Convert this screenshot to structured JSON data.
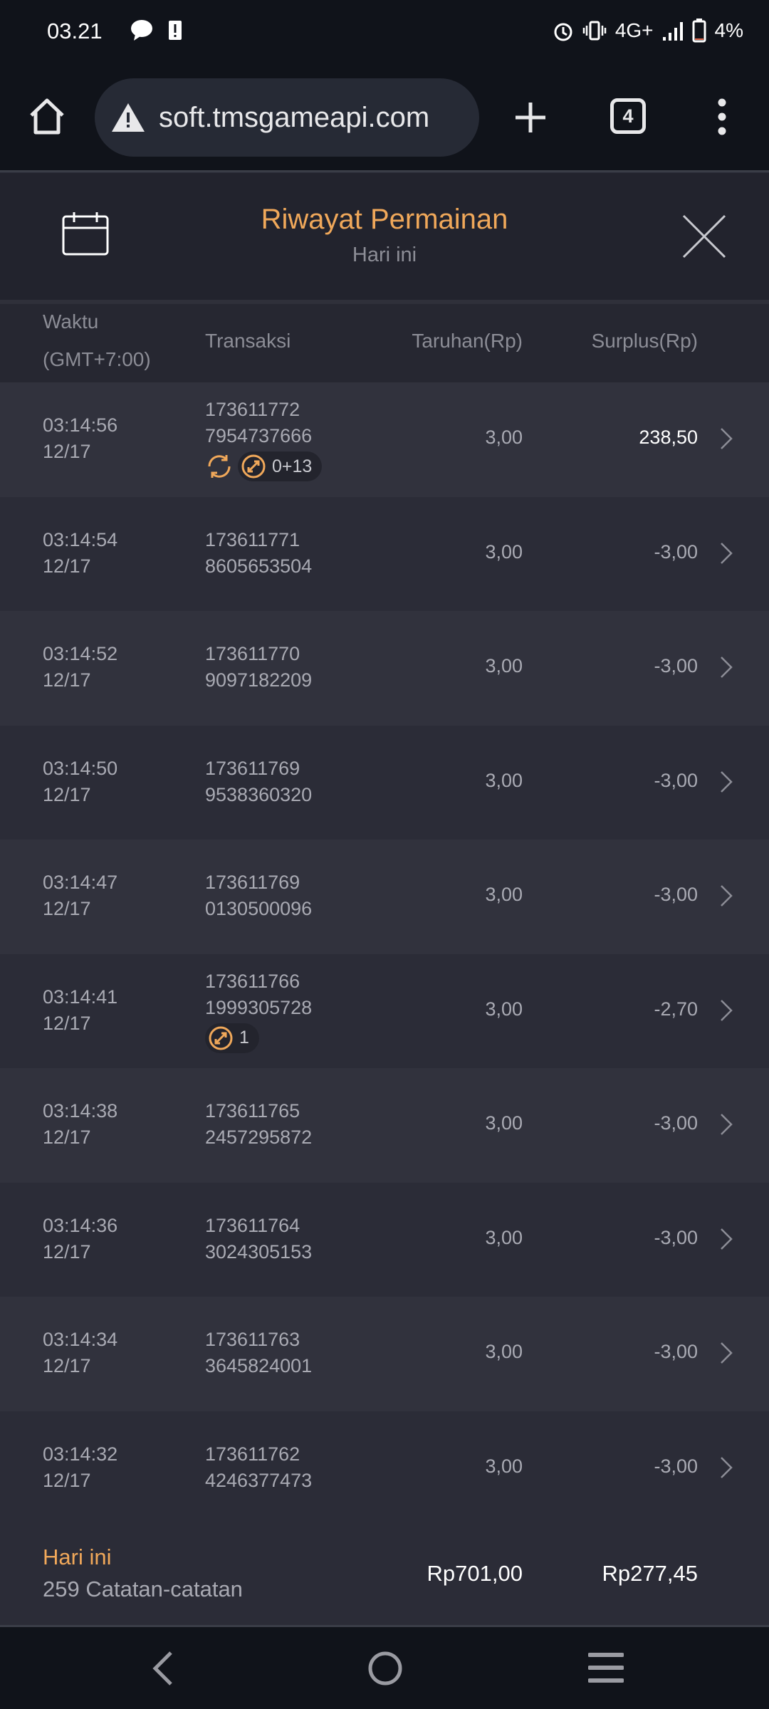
{
  "status_bar": {
    "time": "03.21",
    "network": "4G+",
    "battery": "4%"
  },
  "browser": {
    "url": "soft.tmsgameapi.com",
    "tab_count": "4"
  },
  "header": {
    "title": "Riwayat Permainan",
    "subtitle": "Hari ini"
  },
  "columns": {
    "time_line1": "Waktu",
    "time_line2": "(GMT+7:00)",
    "transaction": "Transaksi",
    "bet": "Taruhan(Rp)",
    "surplus": "Surplus(Rp)"
  },
  "rows": [
    {
      "time": "03:14:56",
      "date": "12/17",
      "tx1": "173611772",
      "tx2": "7954737666",
      "bet": "3,00",
      "surplus": "238,50",
      "win": true,
      "respin_icon": true,
      "feature_count": "0+13"
    },
    {
      "time": "03:14:54",
      "date": "12/17",
      "tx1": "173611771",
      "tx2": "8605653504",
      "bet": "3,00",
      "surplus": "-3,00"
    },
    {
      "time": "03:14:52",
      "date": "12/17",
      "tx1": "173611770",
      "tx2": "9097182209",
      "bet": "3,00",
      "surplus": "-3,00"
    },
    {
      "time": "03:14:50",
      "date": "12/17",
      "tx1": "173611769",
      "tx2": "9538360320",
      "bet": "3,00",
      "surplus": "-3,00"
    },
    {
      "time": "03:14:47",
      "date": "12/17",
      "tx1": "173611769",
      "tx2": "0130500096",
      "bet": "3,00",
      "surplus": "-3,00"
    },
    {
      "time": "03:14:41",
      "date": "12/17",
      "tx1": "173611766",
      "tx2": "1999305728",
      "bet": "3,00",
      "surplus": "-2,70",
      "feature_count": "1"
    },
    {
      "time": "03:14:38",
      "date": "12/17",
      "tx1": "173611765",
      "tx2": "2457295872",
      "bet": "3,00",
      "surplus": "-3,00"
    },
    {
      "time": "03:14:36",
      "date": "12/17",
      "tx1": "173611764",
      "tx2": "3024305153",
      "bet": "3,00",
      "surplus": "-3,00"
    },
    {
      "time": "03:14:34",
      "date": "12/17",
      "tx1": "173611763",
      "tx2": "3645824001",
      "bet": "3,00",
      "surplus": "-3,00"
    },
    {
      "time": "03:14:32",
      "date": "12/17",
      "tx1": "173611762",
      "tx2": "4246377473",
      "bet": "3,00",
      "surplus": "-3,00"
    }
  ],
  "footer": {
    "label": "Hari ini",
    "count": "259 Catatan-catatan",
    "total_bet": "Rp701,00",
    "total_surplus": "Rp277,45"
  },
  "colors": {
    "accent": "#f0a85a",
    "background": "#2b2c37",
    "header": "#22232d",
    "browser": "#10131a"
  }
}
